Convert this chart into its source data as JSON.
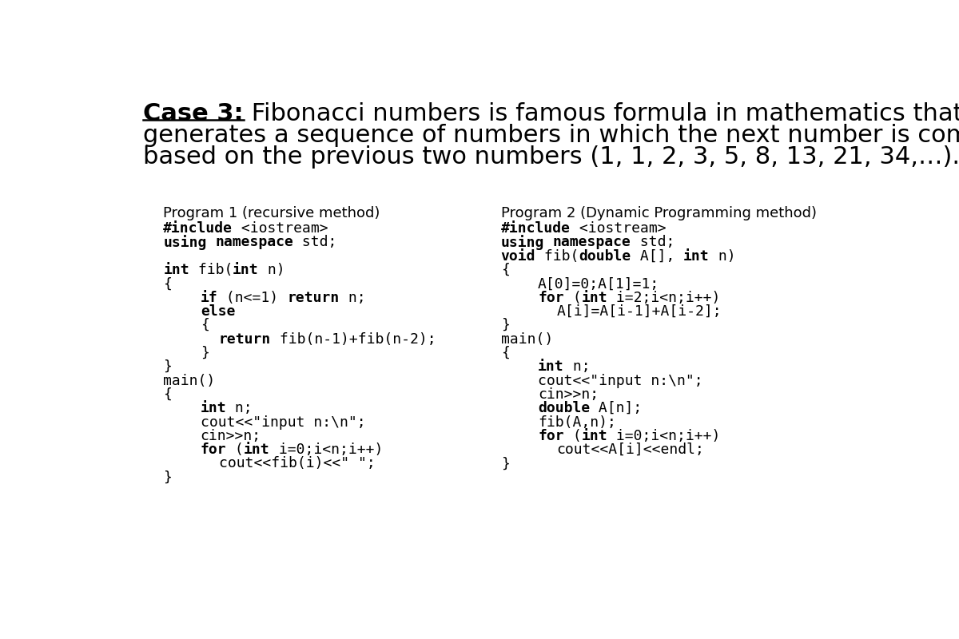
{
  "bg_color": "#ffffff",
  "title_line1_bold": "Case 3:",
  "title_line1_rest": " Fibonacci numbers is famous formula in mathematics that",
  "title_line2": "generates a sequence of numbers in which the next number is computed",
  "title_line3": "based on the previous two numbers (1, 1, 2, 3, 5, 8, 13, 21, 34,…).",
  "prog1_header": "Program 1 (recursive method)",
  "prog2_header": "Program 2 (Dynamic Programming method)",
  "prog1_lines": [
    {
      "text": "#include <iostream>",
      "bold_words": [
        "#include"
      ],
      "indent": 0
    },
    {
      "text": "using namespace std;",
      "bold_words": [
        "using",
        "namespace"
      ],
      "indent": 0
    },
    {
      "text": "",
      "bold_words": [],
      "indent": 0
    },
    {
      "text": "int fib(int n)",
      "bold_words": [
        "int"
      ],
      "indent": 0
    },
    {
      "text": "{",
      "bold_words": [],
      "indent": 0
    },
    {
      "text": "if (n<=1) return n;",
      "bold_words": [
        "if",
        "return"
      ],
      "indent": 2
    },
    {
      "text": "else",
      "bold_words": [
        "else"
      ],
      "indent": 2
    },
    {
      "text": "{",
      "bold_words": [],
      "indent": 2
    },
    {
      "text": "return fib(n-1)+fib(n-2);",
      "bold_words": [
        "return"
      ],
      "indent": 3
    },
    {
      "text": "}",
      "bold_words": [],
      "indent": 2
    },
    {
      "text": "}",
      "bold_words": [],
      "indent": 0
    },
    {
      "text": "main()",
      "bold_words": [],
      "indent": 0
    },
    {
      "text": "{",
      "bold_words": [],
      "indent": 0
    },
    {
      "text": "int n;",
      "bold_words": [
        "int"
      ],
      "indent": 2
    },
    {
      "text": "cout<<\"input n:\\n\";",
      "bold_words": [],
      "indent": 2
    },
    {
      "text": "cin>>n;",
      "bold_words": [],
      "indent": 2
    },
    {
      "text": "for (int i=0;i<n;i++)",
      "bold_words": [
        "for",
        "int"
      ],
      "indent": 2
    },
    {
      "text": "cout<<fib(i)<<\" \";",
      "bold_words": [],
      "indent": 3
    },
    {
      "text": "}",
      "bold_words": [],
      "indent": 0
    }
  ],
  "prog2_lines": [
    {
      "text": "#include <iostream>",
      "bold_words": [
        "#include"
      ],
      "indent": 0
    },
    {
      "text": "using namespace std;",
      "bold_words": [
        "using",
        "namespace"
      ],
      "indent": 0
    },
    {
      "text": "void fib(double A[], int n)",
      "bold_words": [
        "void",
        "double",
        "int"
      ],
      "indent": 0
    },
    {
      "text": "{",
      "bold_words": [],
      "indent": 0
    },
    {
      "text": "A[0]=0;A[1]=1;",
      "bold_words": [],
      "indent": 2
    },
    {
      "text": "for (int i=2;i<n;i++)",
      "bold_words": [
        "for",
        "int"
      ],
      "indent": 2
    },
    {
      "text": "A[i]=A[i-1]+A[i-2];",
      "bold_words": [],
      "indent": 3
    },
    {
      "text": "}",
      "bold_words": [],
      "indent": 0
    },
    {
      "text": "main()",
      "bold_words": [],
      "indent": 0
    },
    {
      "text": "{",
      "bold_words": [],
      "indent": 0
    },
    {
      "text": "int n;",
      "bold_words": [
        "int"
      ],
      "indent": 2
    },
    {
      "text": "cout<<\"input n:\\n\";",
      "bold_words": [],
      "indent": 2
    },
    {
      "text": "cin>>n;",
      "bold_words": [],
      "indent": 2
    },
    {
      "text": "double A[n];",
      "bold_words": [
        "double"
      ],
      "indent": 2
    },
    {
      "text": "fib(A,n);",
      "bold_words": [],
      "indent": 2
    },
    {
      "text": "for (int i=0;i<n;i++)",
      "bold_words": [
        "for",
        "int"
      ],
      "indent": 2
    },
    {
      "text": "cout<<A[i]<<endl;",
      "bold_words": [],
      "indent": 3
    },
    {
      "text": "}",
      "bold_words": [],
      "indent": 0
    }
  ]
}
